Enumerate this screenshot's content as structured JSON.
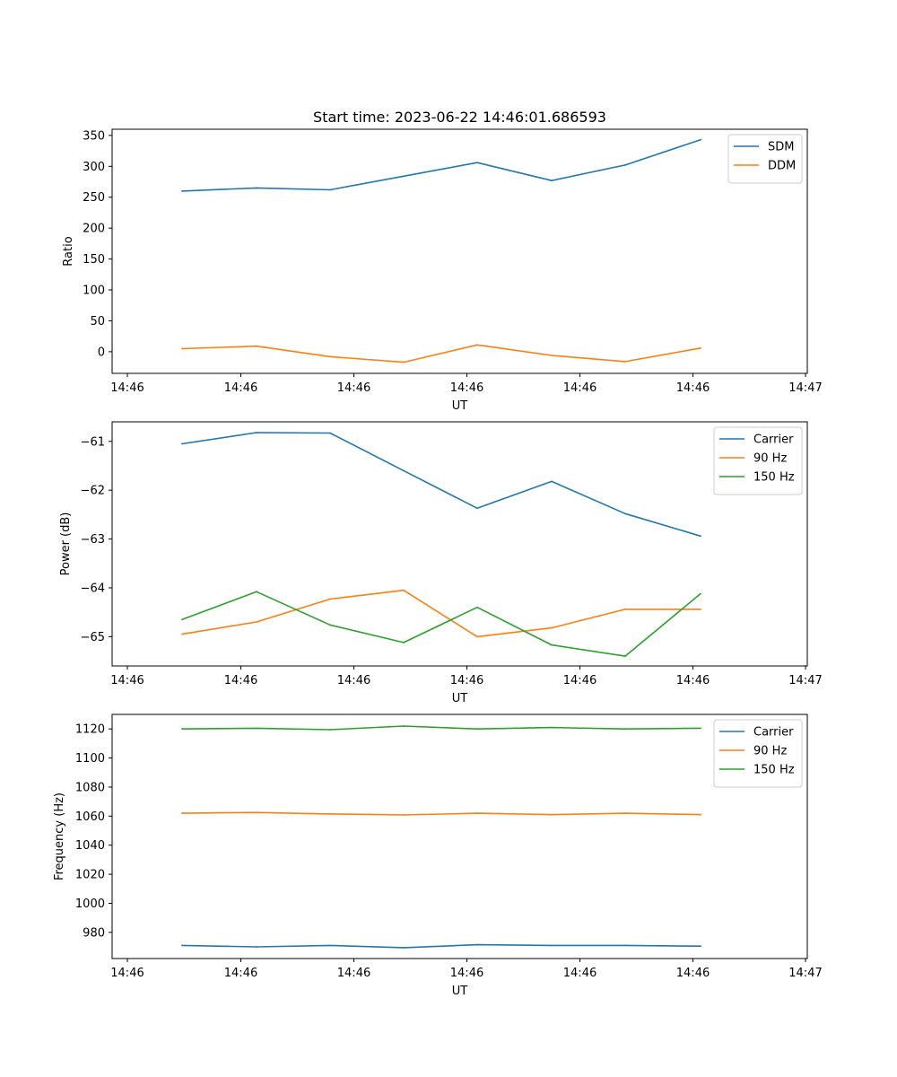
{
  "figure": {
    "title": "Start time: 2023-06-22 14:46:01.686593"
  },
  "chart_data": [
    {
      "type": "line",
      "xlabel": "UT",
      "ylabel": "Ratio",
      "xticks": [
        "14:46",
        "14:46",
        "14:46",
        "14:46",
        "14:46",
        "14:46",
        "14:47"
      ],
      "yticks": [
        0,
        50,
        100,
        150,
        200,
        250,
        300,
        350
      ],
      "ylim": [
        -35,
        360
      ],
      "grid": false,
      "legend_position": "top-right",
      "series": [
        {
          "name": "SDM",
          "color": "#1f77b4",
          "values": [
            260,
            265,
            262,
            284,
            306,
            277,
            302,
            343
          ]
        },
        {
          "name": "DDM",
          "color": "#ff7f0e",
          "values": [
            5,
            9,
            -8,
            -17,
            11,
            -6,
            -16,
            6
          ]
        }
      ]
    },
    {
      "type": "line",
      "xlabel": "UT",
      "ylabel": "Power (dB)",
      "xticks": [
        "14:46",
        "14:46",
        "14:46",
        "14:46",
        "14:46",
        "14:46",
        "14:47"
      ],
      "yticks": [
        -65,
        -64,
        -63,
        -62,
        -61
      ],
      "ylim": [
        -65.6,
        -60.6
      ],
      "grid": false,
      "legend_position": "top-right",
      "series": [
        {
          "name": "Carrier",
          "color": "#1f77b4",
          "values": [
            -61.05,
            -60.82,
            -60.83,
            -61.6,
            -62.37,
            -61.82,
            -62.48,
            -62.94
          ]
        },
        {
          "name": "90 Hz",
          "color": "#ff7f0e",
          "values": [
            -64.95,
            -64.7,
            -64.23,
            -64.05,
            -65.0,
            -64.82,
            -64.44,
            -64.44
          ]
        },
        {
          "name": "150 Hz",
          "color": "#2ca02c",
          "values": [
            -64.65,
            -64.08,
            -64.76,
            -65.12,
            -64.4,
            -65.17,
            -65.4,
            -64.12
          ]
        }
      ]
    },
    {
      "type": "line",
      "xlabel": "UT",
      "ylabel": "Frequency (Hz)",
      "xticks": [
        "14:46",
        "14:46",
        "14:46",
        "14:46",
        "14:46",
        "14:46",
        "14:47"
      ],
      "yticks": [
        980,
        1000,
        1020,
        1040,
        1060,
        1080,
        1100,
        1120
      ],
      "ylim": [
        962,
        1130
      ],
      "grid": false,
      "legend_position": "top-right",
      "series": [
        {
          "name": "Carrier",
          "color": "#1f77b4",
          "values": [
            971,
            970,
            971,
            969.5,
            971.5,
            971,
            971,
            970.5
          ]
        },
        {
          "name": "90 Hz",
          "color": "#ff7f0e",
          "values": [
            1062,
            1062.5,
            1061.5,
            1060.8,
            1062,
            1061,
            1062,
            1061
          ]
        },
        {
          "name": "150 Hz",
          "color": "#2ca02c",
          "values": [
            1120,
            1120.5,
            1119.5,
            1122,
            1120,
            1121,
            1120,
            1120.5
          ]
        }
      ]
    }
  ]
}
